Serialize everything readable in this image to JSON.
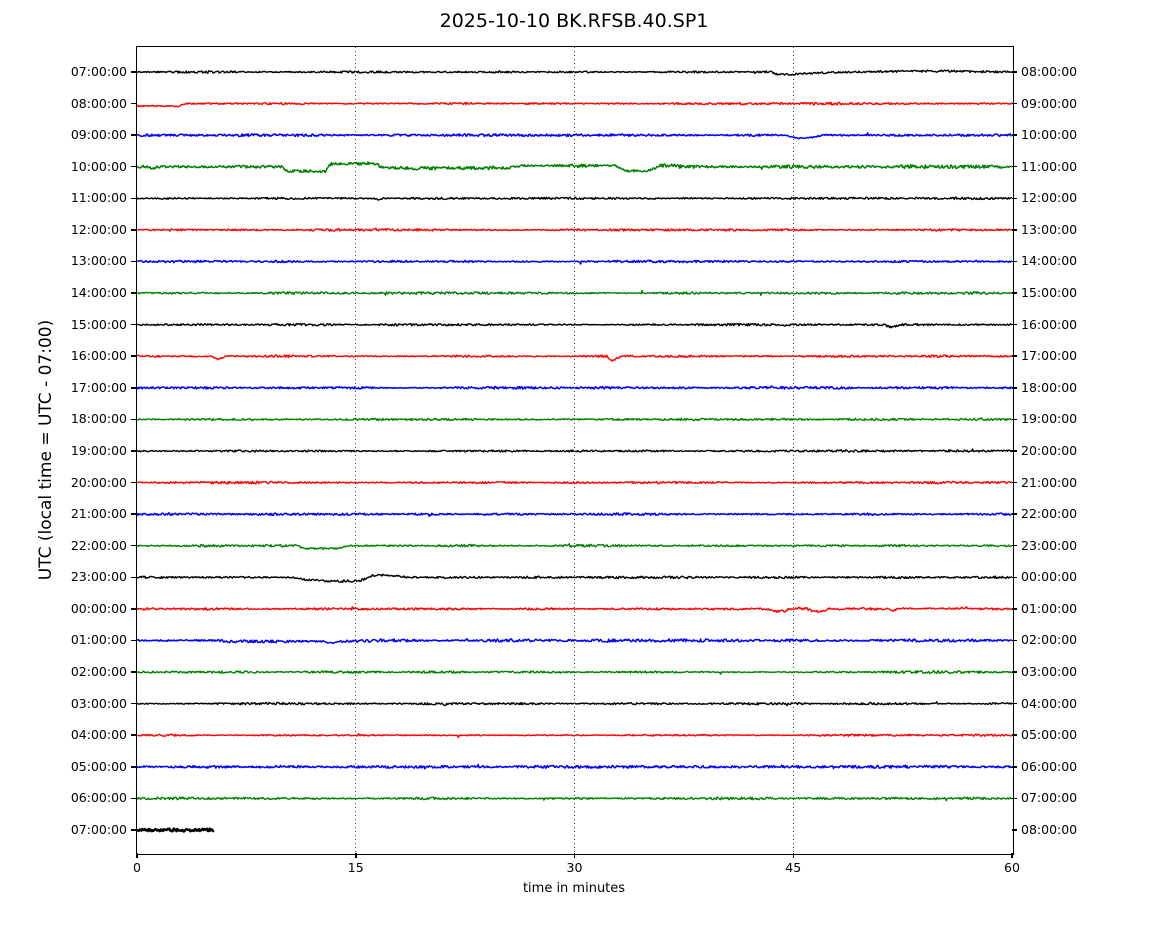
{
  "title": "2025-10-10 BK.RFSB.40.SP1",
  "xlabel": "time in minutes",
  "ylabel": "UTC (local time = UTC - 07:00)",
  "axes": {
    "xlim": [
      0,
      60
    ],
    "xticks": [
      0,
      15,
      30,
      45,
      60
    ],
    "grid_minutes": [
      15,
      30,
      45
    ],
    "grid_style": "dotted-vertical"
  },
  "colors": {
    "black": "#000000",
    "red": "#ff0000",
    "blue": "#0000ff",
    "green": "#008000",
    "frame": "#000000",
    "background": "#ffffff"
  },
  "chart_data": {
    "type": "line",
    "subtype": "helicorder-dayplot",
    "minutes_per_row": 60,
    "traces": [
      {
        "start_label": "07:00:00",
        "end_label": "08:00:00",
        "color": "black",
        "noise": 1.0,
        "width": 1.4,
        "tmax": 60,
        "shape": [
          [
            0,
            0
          ],
          [
            43.5,
            0
          ],
          [
            43.9,
            2.5
          ],
          [
            44.7,
            2.5
          ],
          [
            46.5,
            1
          ],
          [
            49,
            0
          ],
          [
            51.5,
            -0.6
          ],
          [
            56,
            -0.8
          ],
          [
            58.5,
            -0.2
          ],
          [
            60,
            -0.2
          ]
        ]
      },
      {
        "start_label": "08:00:00",
        "end_label": "09:00:00",
        "color": "red",
        "noise": 1.0,
        "width": 1.4,
        "tmax": 60,
        "shape": [
          [
            0,
            2.4
          ],
          [
            2.4,
            2.6
          ],
          [
            2.8,
            3.4
          ],
          [
            3.3,
            0
          ],
          [
            60,
            0
          ]
        ]
      },
      {
        "start_label": "09:00:00",
        "end_label": "10:00:00",
        "color": "blue",
        "noise": 1.0,
        "width": 1.5,
        "tmax": 60,
        "shape": [
          [
            0,
            0
          ],
          [
            44.3,
            0
          ],
          [
            45.3,
            3
          ],
          [
            46.2,
            2.4
          ],
          [
            47.3,
            -0.5
          ],
          [
            48.2,
            0
          ],
          [
            60,
            0
          ]
        ]
      },
      {
        "start_label": "10:00:00",
        "end_label": "11:00:00",
        "color": "green",
        "noise": 1.4,
        "width": 1.5,
        "tmax": 60,
        "shape": [
          [
            0,
            0
          ],
          [
            0.85,
            0
          ],
          [
            1.05,
            2.8
          ],
          [
            1.35,
            0
          ],
          [
            9.9,
            0
          ],
          [
            10.3,
            4.2
          ],
          [
            12.9,
            4.4
          ],
          [
            13.3,
            -2.9
          ],
          [
            16.4,
            -3.1
          ],
          [
            16.8,
            0.9
          ],
          [
            19,
            1.5
          ],
          [
            25.5,
            1.2
          ],
          [
            26.3,
            -0.9
          ],
          [
            27.3,
            -1.4
          ],
          [
            28.3,
            -0.9
          ],
          [
            32.8,
            -1.1
          ],
          [
            33.5,
            4
          ],
          [
            35.1,
            4
          ],
          [
            35.8,
            -1
          ],
          [
            36.6,
            -1.4
          ],
          [
            37.3,
            0
          ],
          [
            60,
            0
          ]
        ]
      },
      {
        "start_label": "11:00:00",
        "end_label": "12:00:00",
        "color": "black",
        "noise": 1.0,
        "width": 1.4,
        "tmax": 60,
        "shape": [
          [
            0,
            0
          ],
          [
            16.2,
            0
          ],
          [
            16.5,
            1.1
          ],
          [
            16.9,
            0
          ],
          [
            35,
            0
          ],
          [
            35.3,
            0.9
          ],
          [
            35.7,
            0
          ],
          [
            60,
            0
          ]
        ]
      },
      {
        "start_label": "12:00:00",
        "end_label": "13:00:00",
        "color": "red",
        "noise": 0.9,
        "width": 1.4,
        "tmax": 60,
        "shape": [
          [
            0,
            0
          ],
          [
            60,
            0
          ]
        ]
      },
      {
        "start_label": "13:00:00",
        "end_label": "14:00:00",
        "color": "blue",
        "noise": 1.0,
        "width": 1.5,
        "tmax": 60,
        "shape": [
          [
            0,
            0
          ],
          [
            60,
            0
          ]
        ]
      },
      {
        "start_label": "14:00:00",
        "end_label": "15:00:00",
        "color": "green",
        "noise": 1.0,
        "width": 1.4,
        "tmax": 60,
        "shape": [
          [
            0,
            0
          ],
          [
            60,
            0
          ]
        ]
      },
      {
        "start_label": "15:00:00",
        "end_label": "16:00:00",
        "color": "black",
        "noise": 0.9,
        "width": 1.4,
        "tmax": 60,
        "shape": [
          [
            0,
            0
          ],
          [
            44,
            0
          ],
          [
            44.3,
            1.1
          ],
          [
            44.7,
            0
          ],
          [
            51.2,
            0
          ],
          [
            51.7,
            2.9
          ],
          [
            52.4,
            0
          ],
          [
            60,
            0
          ]
        ]
      },
      {
        "start_label": "16:00:00",
        "end_label": "17:00:00",
        "color": "red",
        "noise": 1.0,
        "width": 1.4,
        "tmax": 60,
        "shape": [
          [
            0,
            0
          ],
          [
            5.1,
            0
          ],
          [
            5.5,
            2.9
          ],
          [
            6.1,
            0
          ],
          [
            32.2,
            0
          ],
          [
            32.6,
            4.6
          ],
          [
            33.2,
            0
          ],
          [
            60,
            0
          ]
        ]
      },
      {
        "start_label": "17:00:00",
        "end_label": "18:00:00",
        "color": "blue",
        "noise": 1.0,
        "width": 1.5,
        "tmax": 60,
        "shape": [
          [
            0,
            0
          ],
          [
            60,
            0
          ]
        ]
      },
      {
        "start_label": "18:00:00",
        "end_label": "19:00:00",
        "color": "green",
        "noise": 1.0,
        "width": 1.4,
        "tmax": 60,
        "shape": [
          [
            0,
            0
          ],
          [
            60,
            0
          ]
        ]
      },
      {
        "start_label": "19:00:00",
        "end_label": "20:00:00",
        "color": "black",
        "noise": 0.9,
        "width": 1.4,
        "tmax": 60,
        "shape": [
          [
            0,
            0
          ],
          [
            43,
            0
          ],
          [
            43.4,
            0.9
          ],
          [
            43.8,
            0
          ],
          [
            60,
            0
          ]
        ]
      },
      {
        "start_label": "20:00:00",
        "end_label": "21:00:00",
        "color": "red",
        "noise": 0.9,
        "width": 1.4,
        "tmax": 60,
        "shape": [
          [
            0,
            0
          ],
          [
            60,
            0
          ]
        ]
      },
      {
        "start_label": "21:00:00",
        "end_label": "22:00:00",
        "color": "blue",
        "noise": 1.0,
        "width": 1.5,
        "tmax": 60,
        "shape": [
          [
            0,
            0
          ],
          [
            60,
            0
          ]
        ]
      },
      {
        "start_label": "22:00:00",
        "end_label": "23:00:00",
        "color": "green",
        "noise": 1.0,
        "width": 1.4,
        "tmax": 60,
        "shape": [
          [
            0,
            0
          ],
          [
            10.9,
            0
          ],
          [
            11.6,
            2.7
          ],
          [
            13.6,
            2.7
          ],
          [
            14.7,
            0
          ],
          [
            60,
            0
          ]
        ]
      },
      {
        "start_label": "23:00:00",
        "end_label": "00:00:00",
        "color": "black",
        "noise": 1.0,
        "width": 1.4,
        "tmax": 60,
        "shape": [
          [
            0,
            0
          ],
          [
            10.6,
            0
          ],
          [
            11.7,
            2.7
          ],
          [
            13.6,
            4.1
          ],
          [
            15.3,
            3.5
          ],
          [
            16.1,
            -1.8
          ],
          [
            17.4,
            -2
          ],
          [
            18.5,
            0
          ],
          [
            60,
            0
          ]
        ]
      },
      {
        "start_label": "00:00:00",
        "end_label": "01:00:00",
        "color": "red",
        "noise": 1.0,
        "width": 1.4,
        "tmax": 60,
        "shape": [
          [
            0,
            0
          ],
          [
            43.3,
            0
          ],
          [
            43.8,
            2.3
          ],
          [
            44.4,
            2.3
          ],
          [
            44.9,
            -0.7
          ],
          [
            45.9,
            -0.4
          ],
          [
            46.3,
            2.3
          ],
          [
            47,
            2.3
          ],
          [
            47.6,
            -0.9
          ],
          [
            48.2,
            0
          ],
          [
            51.5,
            0
          ],
          [
            51.9,
            1.8
          ],
          [
            52.3,
            -0.7
          ],
          [
            53.1,
            -0.4
          ],
          [
            56.3,
            -0.4
          ],
          [
            56.9,
            -1.3
          ],
          [
            57.5,
            0
          ],
          [
            60,
            0
          ]
        ]
      },
      {
        "start_label": "01:00:00",
        "end_label": "02:00:00",
        "color": "blue",
        "noise": 1.2,
        "width": 1.5,
        "tmax": 60,
        "shape": [
          [
            0,
            0
          ],
          [
            5.8,
            0
          ],
          [
            6.1,
            1.3
          ],
          [
            7,
            0.9
          ],
          [
            12.8,
            0.9
          ],
          [
            13.3,
            2.7
          ],
          [
            13.9,
            0.9
          ],
          [
            15.2,
            0.5
          ],
          [
            17,
            0
          ],
          [
            60,
            0
          ]
        ]
      },
      {
        "start_label": "02:00:00",
        "end_label": "03:00:00",
        "color": "green",
        "noise": 1.0,
        "width": 1.4,
        "tmax": 60,
        "shape": [
          [
            0,
            0
          ],
          [
            60,
            0
          ]
        ]
      },
      {
        "start_label": "03:00:00",
        "end_label": "04:00:00",
        "color": "black",
        "noise": 0.9,
        "width": 1.4,
        "tmax": 60,
        "shape": [
          [
            0,
            0
          ],
          [
            20.8,
            0
          ],
          [
            21.1,
            0.9
          ],
          [
            21.5,
            0
          ],
          [
            60,
            0
          ]
        ]
      },
      {
        "start_label": "04:00:00",
        "end_label": "05:00:00",
        "color": "red",
        "noise": 0.9,
        "width": 1.4,
        "tmax": 60,
        "shape": [
          [
            0,
            0
          ],
          [
            60,
            0
          ]
        ]
      },
      {
        "start_label": "05:00:00",
        "end_label": "06:00:00",
        "color": "blue",
        "noise": 1.2,
        "width": 1.5,
        "tmax": 60,
        "shape": [
          [
            0,
            0
          ],
          [
            60,
            0
          ]
        ]
      },
      {
        "start_label": "06:00:00",
        "end_label": "07:00:00",
        "color": "green",
        "noise": 1.0,
        "width": 1.4,
        "tmax": 60,
        "shape": [
          [
            0,
            0
          ],
          [
            60,
            0
          ]
        ]
      },
      {
        "start_label": "07:00:00",
        "end_label": "08:00:00",
        "color": "black",
        "noise": 1.1,
        "width": 2.4,
        "tmax": 5.3,
        "shape": [
          [
            0,
            0
          ],
          [
            60,
            0
          ]
        ]
      }
    ]
  }
}
